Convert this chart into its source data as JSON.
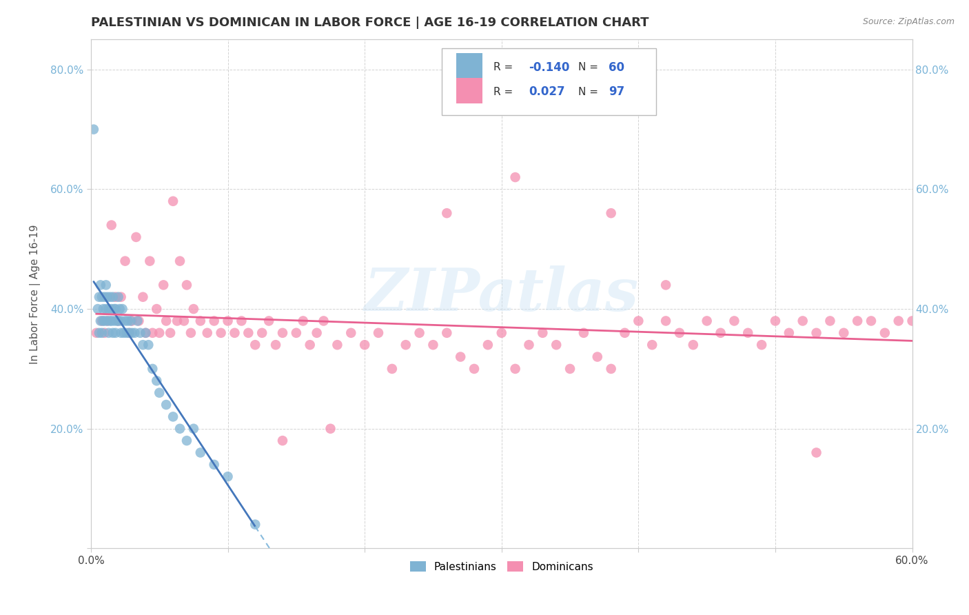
{
  "title": "PALESTINIAN VS DOMINICAN IN LABOR FORCE | AGE 16-19 CORRELATION CHART",
  "source": "Source: ZipAtlas.com",
  "ylabel": "In Labor Force | Age 16-19",
  "xlim": [
    0.0,
    0.6
  ],
  "ylim": [
    0.0,
    0.85
  ],
  "x_tick_positions": [
    0.0,
    0.1,
    0.2,
    0.3,
    0.4,
    0.5,
    0.6
  ],
  "x_tick_labels": [
    "0.0%",
    "",
    "",
    "",
    "",
    "",
    "60.0%"
  ],
  "y_tick_positions": [
    0.0,
    0.2,
    0.4,
    0.6,
    0.8
  ],
  "y_tick_labels": [
    "",
    "20.0%",
    "40.0%",
    "60.0%",
    "80.0%"
  ],
  "watermark_text": "ZIPatlas",
  "palestinian_color": "#7fb3d3",
  "dominican_color": "#f48fb1",
  "trend_pal_solid_color": "#4477bb",
  "trend_pal_dashed_color": "#88bbdd",
  "trend_dom_color": "#e86090",
  "grid_color": "#c8c8c8",
  "background_color": "#ffffff",
  "legend_pal_R": "-0.140",
  "legend_pal_N": "60",
  "legend_dom_R": "0.027",
  "legend_dom_N": "97",
  "palestinians_x": [
    0.002,
    0.005,
    0.006,
    0.006,
    0.007,
    0.007,
    0.008,
    0.008,
    0.009,
    0.009,
    0.01,
    0.01,
    0.011,
    0.011,
    0.012,
    0.012,
    0.013,
    0.013,
    0.014,
    0.014,
    0.015,
    0.015,
    0.016,
    0.016,
    0.017,
    0.017,
    0.018,
    0.018,
    0.019,
    0.02,
    0.02,
    0.021,
    0.022,
    0.022,
    0.023,
    0.024,
    0.025,
    0.026,
    0.027,
    0.028,
    0.029,
    0.03,
    0.032,
    0.034,
    0.036,
    0.038,
    0.04,
    0.042,
    0.045,
    0.048,
    0.05,
    0.055,
    0.06,
    0.065,
    0.07,
    0.075,
    0.08,
    0.09,
    0.1,
    0.12
  ],
  "palestinians_y": [
    0.7,
    0.4,
    0.36,
    0.42,
    0.38,
    0.44,
    0.36,
    0.42,
    0.4,
    0.38,
    0.38,
    0.42,
    0.4,
    0.44,
    0.38,
    0.42,
    0.4,
    0.36,
    0.38,
    0.42,
    0.38,
    0.4,
    0.42,
    0.36,
    0.4,
    0.38,
    0.36,
    0.4,
    0.38,
    0.38,
    0.42,
    0.4,
    0.38,
    0.36,
    0.4,
    0.36,
    0.38,
    0.36,
    0.38,
    0.36,
    0.38,
    0.36,
    0.36,
    0.38,
    0.36,
    0.34,
    0.36,
    0.34,
    0.3,
    0.28,
    0.26,
    0.24,
    0.22,
    0.2,
    0.18,
    0.2,
    0.16,
    0.14,
    0.12,
    0.04
  ],
  "dominicans_x": [
    0.004,
    0.008,
    0.01,
    0.012,
    0.015,
    0.018,
    0.02,
    0.022,
    0.025,
    0.028,
    0.03,
    0.033,
    0.035,
    0.038,
    0.04,
    0.043,
    0.045,
    0.048,
    0.05,
    0.053,
    0.055,
    0.058,
    0.06,
    0.063,
    0.065,
    0.068,
    0.07,
    0.073,
    0.075,
    0.08,
    0.085,
    0.09,
    0.095,
    0.1,
    0.105,
    0.11,
    0.115,
    0.12,
    0.125,
    0.13,
    0.135,
    0.14,
    0.15,
    0.155,
    0.16,
    0.165,
    0.17,
    0.18,
    0.19,
    0.2,
    0.21,
    0.22,
    0.23,
    0.24,
    0.25,
    0.26,
    0.27,
    0.28,
    0.29,
    0.3,
    0.31,
    0.32,
    0.33,
    0.34,
    0.35,
    0.36,
    0.37,
    0.38,
    0.39,
    0.4,
    0.41,
    0.42,
    0.43,
    0.44,
    0.45,
    0.46,
    0.47,
    0.48,
    0.49,
    0.5,
    0.51,
    0.52,
    0.53,
    0.54,
    0.55,
    0.56,
    0.57,
    0.58,
    0.59,
    0.6,
    0.31,
    0.175,
    0.26,
    0.42,
    0.14,
    0.53,
    0.38
  ],
  "dominicans_y": [
    0.36,
    0.38,
    0.36,
    0.38,
    0.54,
    0.42,
    0.38,
    0.42,
    0.48,
    0.36,
    0.38,
    0.52,
    0.38,
    0.42,
    0.36,
    0.48,
    0.36,
    0.4,
    0.36,
    0.44,
    0.38,
    0.36,
    0.58,
    0.38,
    0.48,
    0.38,
    0.44,
    0.36,
    0.4,
    0.38,
    0.36,
    0.38,
    0.36,
    0.38,
    0.36,
    0.38,
    0.36,
    0.34,
    0.36,
    0.38,
    0.34,
    0.36,
    0.36,
    0.38,
    0.34,
    0.36,
    0.38,
    0.34,
    0.36,
    0.34,
    0.36,
    0.3,
    0.34,
    0.36,
    0.34,
    0.36,
    0.32,
    0.3,
    0.34,
    0.36,
    0.3,
    0.34,
    0.36,
    0.34,
    0.3,
    0.36,
    0.32,
    0.3,
    0.36,
    0.38,
    0.34,
    0.38,
    0.36,
    0.34,
    0.38,
    0.36,
    0.38,
    0.36,
    0.34,
    0.38,
    0.36,
    0.38,
    0.36,
    0.38,
    0.36,
    0.38,
    0.38,
    0.36,
    0.38,
    0.38,
    0.62,
    0.2,
    0.56,
    0.44,
    0.18,
    0.16,
    0.56
  ]
}
